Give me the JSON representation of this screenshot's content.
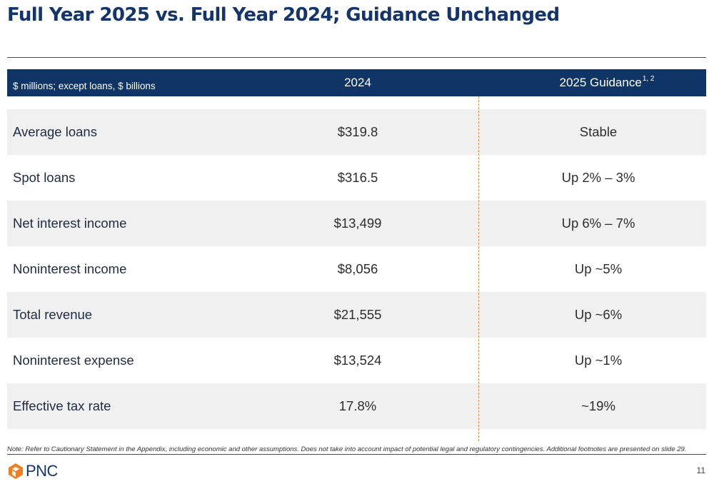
{
  "title": "Full Year 2025 vs. Full Year 2024; Guidance Unchanged",
  "table": {
    "headers": {
      "units": "$ millions; except loans, $ billions",
      "col_2024": "2024",
      "col_guidance": "2025 Guidance",
      "col_guidance_footnote": "1, 2"
    },
    "rows": [
      {
        "label": "Average loans",
        "v2024": "$319.8",
        "guidance": "Stable"
      },
      {
        "label": "Spot loans",
        "v2024": "$316.5",
        "guidance": "Up 2% – 3%"
      },
      {
        "label": "Net interest income",
        "v2024": "$13,499",
        "guidance": "Up 6% – 7%"
      },
      {
        "label": "Noninterest income",
        "v2024": "$8,056",
        "guidance": "Up ~5%"
      },
      {
        "label": "Total revenue",
        "v2024": "$21,555",
        "guidance": "Up ~6%"
      },
      {
        "label": "Noninterest expense",
        "v2024": "$13,524",
        "guidance": "Up ~1%"
      },
      {
        "label": "Effective tax rate",
        "v2024": "17.8%",
        "guidance": "~19%"
      }
    ]
  },
  "note": "Note: Refer to Cautionary Statement in the Appendix, including economic and other assumptions. Does not take into account impact of potential legal and regulatory contingencies. Additional footnotes are presented on slide 29.",
  "logo_text": "PNC",
  "page_number": "11",
  "colors": {
    "brand_navy": "#0f3566",
    "brand_orange": "#ef7f22",
    "row_shade": "#f0f0f0"
  }
}
